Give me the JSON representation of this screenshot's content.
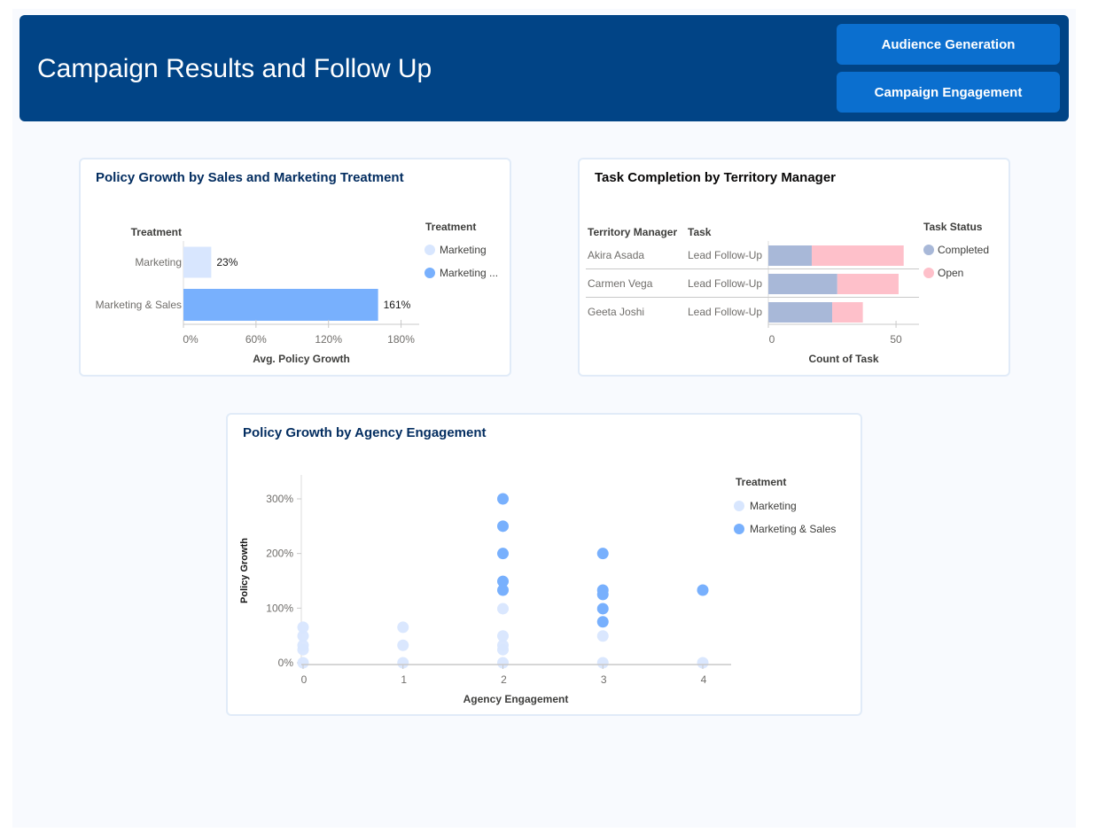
{
  "header": {
    "title": "Campaign Results and Follow Up",
    "buttons": [
      "Audience Generation",
      "Campaign Engagement"
    ]
  },
  "colors": {
    "header_bg": "#014486",
    "button_bg": "#0b6fcf",
    "marketing": "#d8e6fe",
    "marketing_sales": "#78b0fd",
    "completed": "#a8b8d8",
    "open": "#fec0ca"
  },
  "cards": {
    "policy_growth_treatment": {
      "title": "Policy Growth by Sales and Marketing Treatment"
    },
    "task_completion": {
      "title": "Task Completion by Territory Manager"
    },
    "agency_engagement": {
      "title": "Policy Growth by Agency Engagement"
    }
  },
  "chart_data": [
    {
      "id": "treatment_bar",
      "type": "bar",
      "orientation": "horizontal",
      "title": "Policy Growth by Sales and Marketing Treatment",
      "ylabel": "Treatment",
      "xlabel": "Avg. Policy Growth",
      "categories": [
        "Marketing",
        "Marketing & Sales"
      ],
      "values": [
        23,
        161
      ],
      "value_labels": [
        "23%",
        "161%"
      ],
      "xlim": [
        0,
        195
      ],
      "xticks": [
        0,
        60,
        120,
        180
      ],
      "xtick_labels": [
        "0%",
        "60%",
        "120%",
        "180%"
      ],
      "legend": {
        "title": "Treatment",
        "position": "right",
        "entries": [
          "Marketing",
          "Marketing ..."
        ]
      }
    },
    {
      "id": "task_bar",
      "type": "bar",
      "orientation": "horizontal",
      "stacked": true,
      "title": "Task Completion by Territory Manager",
      "column_headers": [
        "Territory Manager",
        "Task"
      ],
      "rows": [
        {
          "manager": "Akira Asada",
          "task": "Lead Follow-Up"
        },
        {
          "manager": "Carmen Vega",
          "task": "Lead Follow-Up"
        },
        {
          "manager": "Geeta Joshi",
          "task": "Lead Follow-Up"
        }
      ],
      "series": [
        {
          "name": "Completed",
          "values": [
            17,
            27,
            25
          ]
        },
        {
          "name": "Open",
          "values": [
            36,
            24,
            12
          ]
        }
      ],
      "xlabel": "Count of Task",
      "xlim": [
        0,
        59
      ],
      "xticks": [
        0,
        50
      ],
      "legend": {
        "title": "Task Status",
        "position": "right",
        "entries": [
          "Completed",
          "Open"
        ]
      }
    },
    {
      "id": "engagement_scatter",
      "type": "scatter",
      "title": "Policy Growth by Agency Engagement",
      "xlabel": "Agency Engagement",
      "ylabel": "Policy Growth",
      "xlim": [
        0,
        4.3
      ],
      "ylim": [
        0,
        345
      ],
      "xticks": [
        0,
        1,
        2,
        3,
        4
      ],
      "yticks": [
        0,
        100,
        200,
        300
      ],
      "ytick_labels": [
        "0%",
        "100%",
        "200%",
        "300%"
      ],
      "series": [
        {
          "name": "Marketing",
          "points": [
            [
              0,
              0
            ],
            [
              0,
              24
            ],
            [
              0,
              32
            ],
            [
              0,
              49
            ],
            [
              0,
              65
            ],
            [
              1,
              0
            ],
            [
              1,
              32
            ],
            [
              1,
              65
            ],
            [
              2,
              0
            ],
            [
              2,
              24
            ],
            [
              2,
              32
            ],
            [
              2,
              49
            ],
            [
              2,
              99
            ],
            [
              3,
              0
            ],
            [
              3,
              49
            ],
            [
              4,
              0
            ]
          ]
        },
        {
          "name": "Marketing & Sales",
          "points": [
            [
              2,
              133
            ],
            [
              2,
              149
            ],
            [
              2,
              200
            ],
            [
              2,
              250
            ],
            [
              2,
              300
            ],
            [
              3,
              75
            ],
            [
              3,
              99
            ],
            [
              3,
              125
            ],
            [
              3,
              133
            ],
            [
              3,
              200
            ],
            [
              4,
              133
            ]
          ]
        }
      ],
      "legend": {
        "title": "Treatment",
        "position": "right",
        "entries": [
          "Marketing",
          "Marketing & Sales"
        ]
      }
    }
  ]
}
